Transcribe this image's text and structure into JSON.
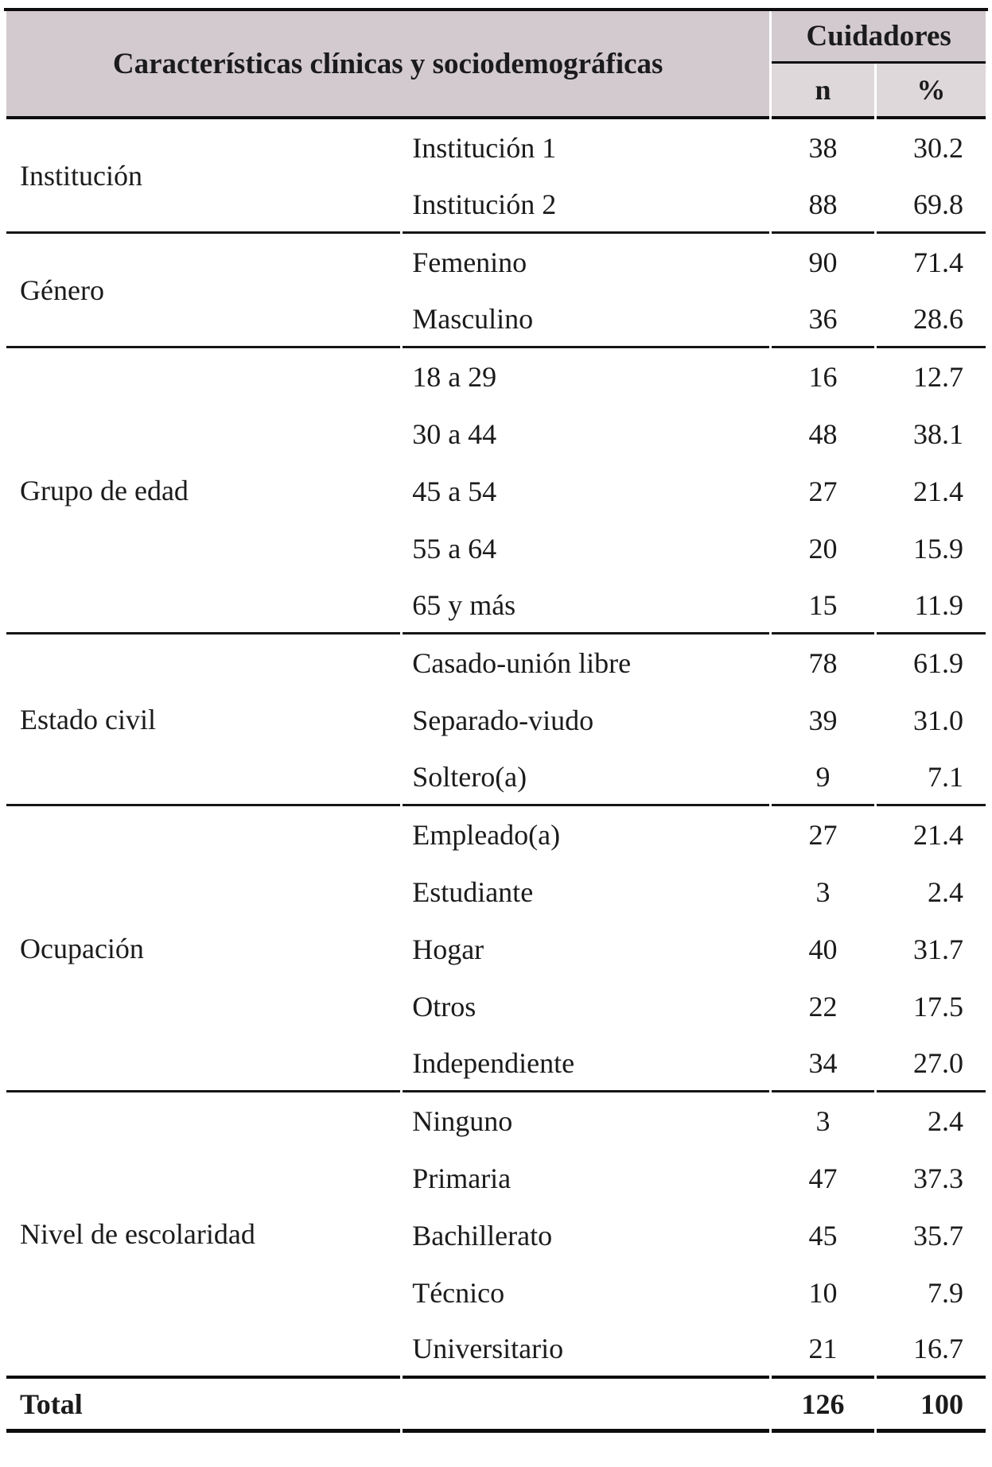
{
  "chart_data": {
    "type": "table",
    "title": "Características clínicas y sociodemográficas de cuidadores",
    "header": {
      "title_col": "Características clínicas y sociodemográficas",
      "group": "Cuidadores",
      "n": "n",
      "pct": "%"
    },
    "sections": [
      {
        "category": "Institución",
        "rows": [
          {
            "label": "Institución 1",
            "n": "38",
            "pct": "30.2"
          },
          {
            "label": "Institución 2",
            "n": "88",
            "pct": "69.8"
          }
        ]
      },
      {
        "category": "Género",
        "rows": [
          {
            "label": "Femenino",
            "n": "90",
            "pct": "71.4"
          },
          {
            "label": "Masculino",
            "n": "36",
            "pct": "28.6"
          }
        ]
      },
      {
        "category": "Grupo de edad",
        "rows": [
          {
            "label": "18 a 29",
            "n": "16",
            "pct": "12.7"
          },
          {
            "label": "30 a 44",
            "n": "48",
            "pct": "38.1"
          },
          {
            "label": "45 a 54",
            "n": "27",
            "pct": "21.4"
          },
          {
            "label": "55 a 64",
            "n": "20",
            "pct": "15.9"
          },
          {
            "label": "65 y más",
            "n": "15",
            "pct": "11.9"
          }
        ]
      },
      {
        "category": "Estado civil",
        "rows": [
          {
            "label": "Casado-unión libre",
            "n": "78",
            "pct": "61.9"
          },
          {
            "label": "Separado-viudo",
            "n": "39",
            "pct": "31.0"
          },
          {
            "label": "Soltero(a)",
            "n": "9",
            "pct": "7.1"
          }
        ]
      },
      {
        "category": "Ocupación",
        "rows": [
          {
            "label": "Empleado(a)",
            "n": "27",
            "pct": "21.4"
          },
          {
            "label": "Estudiante",
            "n": "3",
            "pct": "2.4"
          },
          {
            "label": "Hogar",
            "n": "40",
            "pct": "31.7"
          },
          {
            "label": "Otros",
            "n": "22",
            "pct": "17.5"
          },
          {
            "label": "Independiente",
            "n": "34",
            "pct": "27.0"
          }
        ]
      },
      {
        "category": "Nivel de escolaridad",
        "rows": [
          {
            "label": "Ninguno",
            "n": "3",
            "pct": "2.4"
          },
          {
            "label": "Primaria",
            "n": "47",
            "pct": "37.3"
          },
          {
            "label": "Bachillerato",
            "n": "45",
            "pct": "35.7"
          },
          {
            "label": "Técnico",
            "n": "10",
            "pct": "7.9"
          },
          {
            "label": "Universitario",
            "n": "21",
            "pct": "16.7"
          }
        ]
      }
    ],
    "total": {
      "label": "Total",
      "n": "126",
      "pct": "100"
    },
    "colors": {
      "header_bg": "#d3cad0",
      "subheader_bg": "#ded8db",
      "rule_color": "#0d0d0d",
      "text_color": "#1b1b1b"
    }
  }
}
